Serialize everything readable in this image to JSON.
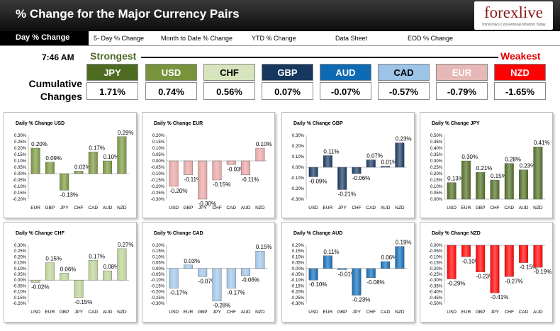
{
  "header": {
    "title": "% Change for the Major Currency Pairs",
    "logo": "forexlive",
    "logo_tagline": "Tomorrow's Conventional Wisdom Today"
  },
  "tabs": [
    {
      "label": "Day % Change",
      "active": true
    },
    {
      "label": "5- Day % Change",
      "active": false
    },
    {
      "label": "Month to Date % Change",
      "active": false
    },
    {
      "label": "YTD % Change",
      "active": false
    },
    {
      "label": "Data Sheet",
      "active": false
    },
    {
      "label": "EOD % Change",
      "active": false
    }
  ],
  "summary": {
    "time": "7:46 AM",
    "strongest": "Strongest",
    "weakest": "Weakest",
    "cumulative_label": "Cumulative Changes",
    "currencies": [
      {
        "name": "JPY",
        "value": "1.71%",
        "bg": "#4e6b22",
        "fg": "#ffffff"
      },
      {
        "name": "USD",
        "value": "0.74%",
        "bg": "#77933c",
        "fg": "#ffffff"
      },
      {
        "name": "CHF",
        "value": "0.56%",
        "bg": "#d7e4bd",
        "fg": "#000000"
      },
      {
        "name": "GBP",
        "value": "0.07%",
        "bg": "#17375e",
        "fg": "#ffffff"
      },
      {
        "name": "AUD",
        "value": "-0.07%",
        "bg": "#0f6ab4",
        "fg": "#ffffff"
      },
      {
        "name": "CAD",
        "value": "-0.57%",
        "bg": "#9dc3e6",
        "fg": "#000000"
      },
      {
        "name": "EUR",
        "value": "-0.79%",
        "bg": "#e6b9b8",
        "fg": "#ffffff"
      },
      {
        "name": "NZD",
        "value": "-1.65%",
        "bg": "#ff0000",
        "fg": "#ffffff"
      }
    ]
  },
  "chart_data": [
    {
      "type": "bar",
      "title": "Daily % Change USD",
      "categories": [
        "EUR",
        "GBP",
        "JPY",
        "CHF",
        "CAD",
        "AUD",
        "NZD"
      ],
      "values": [
        0.2,
        0.09,
        -0.13,
        0.02,
        0.17,
        0.1,
        0.29
      ],
      "labels": [
        "0.20%",
        "0.09%",
        "-0.13%",
        "0.02%",
        "0.17%",
        "0.10%",
        "0.29%"
      ],
      "ylim": [
        -0.2,
        0.3
      ],
      "yticks": [
        "0.30%",
        "0.25%",
        "0.20%",
        "0.15%",
        "0.10%",
        "0.05%",
        "0.00%",
        "-0.05%",
        "-0.10%",
        "-0.15%",
        "-0.20%"
      ],
      "color": "#77933c"
    },
    {
      "type": "bar",
      "title": "Daily % Change EUR",
      "categories": [
        "USD",
        "GBP",
        "JPY",
        "CHF",
        "CAD",
        "AUD",
        "NZD"
      ],
      "values": [
        -0.2,
        -0.11,
        -0.3,
        -0.15,
        -0.03,
        -0.11,
        0.1
      ],
      "labels": [
        "-0.20%",
        "-0.11%",
        "-0.30%",
        "-0.15%",
        "-0.03%",
        "-0.11%",
        "0.10%"
      ],
      "ylim": [
        -0.3,
        0.2
      ],
      "yticks": [
        "0.20%",
        "0.15%",
        "0.10%",
        "0.05%",
        "0.00%",
        "-0.05%",
        "-0.10%",
        "-0.15%",
        "-0.20%",
        "-0.25%",
        "-0.30%"
      ],
      "color": "#e6a3a2"
    },
    {
      "type": "bar",
      "title": "Daily % Change GBP",
      "categories": [
        "USD",
        "EUR",
        "JPY",
        "CHF",
        "CAD",
        "AUD",
        "NZD"
      ],
      "values": [
        -0.09,
        0.11,
        -0.21,
        -0.06,
        0.07,
        0.01,
        0.23
      ],
      "labels": [
        "-0.09%",
        "0.11%",
        "-0.21%",
        "-0.06%",
        "0.07%",
        "0.01%",
        "0.23%"
      ],
      "ylim": [
        -0.3,
        0.3
      ],
      "yticks": [
        "0.30%",
        "0.20%",
        "0.10%",
        "0.00%",
        "-0.10%",
        "-0.20%",
        "-0.30%"
      ],
      "color": "#17375e"
    },
    {
      "type": "bar",
      "title": "Daily % Change JPY",
      "categories": [
        "USD",
        "EUR",
        "GBP",
        "CHF",
        "CAD",
        "AUD",
        "NZD"
      ],
      "values": [
        0.13,
        0.3,
        0.21,
        0.15,
        0.28,
        0.23,
        0.41
      ],
      "labels": [
        "0.13%",
        "0.30%",
        "0.21%",
        "0.15%",
        "0.28%",
        "0.23%",
        "0.41%"
      ],
      "ylim": [
        0.0,
        0.5
      ],
      "yticks": [
        "0.50%",
        "0.45%",
        "0.40%",
        "0.35%",
        "0.30%",
        "0.25%",
        "0.20%",
        "0.15%",
        "0.10%",
        "0.05%",
        "0.00%"
      ],
      "color": "#4e6b22"
    },
    {
      "type": "bar",
      "title": "Daily % Change CHF",
      "categories": [
        "USD",
        "EUR",
        "GBP",
        "JPY",
        "CAD",
        "AUD",
        "NZD"
      ],
      "values": [
        -0.02,
        0.15,
        0.06,
        -0.15,
        0.17,
        0.08,
        0.27
      ],
      "labels": [
        "-0.02%",
        "0.15%",
        "0.06%",
        "-0.15%",
        "0.17%",
        "0.08%",
        "0.27%"
      ],
      "ylim": [
        -0.2,
        0.3
      ],
      "yticks": [
        "0.30%",
        "0.25%",
        "0.20%",
        "0.15%",
        "0.10%",
        "0.05%",
        "0.00%",
        "-0.05%",
        "-0.10%",
        "-0.15%",
        "-0.20%"
      ],
      "color": "#b9cf93"
    },
    {
      "type": "bar",
      "title": "Daily % Change CAD",
      "categories": [
        "USD",
        "EUR",
        "GBP",
        "JPY",
        "CHF",
        "AUD",
        "NZD"
      ],
      "values": [
        -0.17,
        0.03,
        -0.07,
        -0.28,
        -0.17,
        -0.06,
        0.15
      ],
      "labels": [
        "-0.17%",
        "0.03%",
        "-0.07%",
        "-0.28%",
        "-0.17%",
        "-0.06%",
        "0.15%"
      ],
      "ylim": [
        -0.3,
        0.2
      ],
      "yticks": [
        "0.20%",
        "0.15%",
        "0.10%",
        "0.05%",
        "0.00%",
        "-0.05%",
        "-0.10%",
        "-0.15%",
        "-0.20%",
        "-0.25%",
        "-0.30%"
      ],
      "color": "#9dc3e6"
    },
    {
      "type": "bar",
      "title": "Daily % Change AUD",
      "categories": [
        "USD",
        "EUR",
        "GBP",
        "JPY",
        "CHF",
        "CAD",
        "NZD"
      ],
      "values": [
        -0.1,
        0.11,
        -0.01,
        -0.23,
        -0.08,
        0.06,
        0.19
      ],
      "labels": [
        "-0.10%",
        "0.11%",
        "-0.01%",
        "-0.23%",
        "-0.08%",
        "0.06%",
        "0.19%"
      ],
      "ylim": [
        -0.3,
        0.2
      ],
      "yticks": [
        "0.20%",
        "0.15%",
        "0.10%",
        "0.05%",
        "0.00%",
        "-0.05%",
        "-0.10%",
        "-0.15%",
        "-0.20%",
        "-0.25%",
        "-0.30%"
      ],
      "color": "#0f6ab4"
    },
    {
      "type": "bar",
      "title": "Daily % Change NZD",
      "categories": [
        "USD",
        "EUR",
        "GBP",
        "JPY",
        "CHF",
        "CAD",
        "AUD"
      ],
      "values": [
        -0.29,
        -0.1,
        -0.23,
        -0.41,
        -0.27,
        -0.15,
        -0.19
      ],
      "labels": [
        "-0.29%",
        "-0.10%",
        "-0.23%",
        "-0.41%",
        "-0.27%",
        "-0.15%",
        "-0.19%"
      ],
      "ylim": [
        -0.5,
        0.0
      ],
      "yticks": [
        "0.00%",
        "-0.05%",
        "-0.10%",
        "-0.15%",
        "-0.20%",
        "-0.25%",
        "-0.30%",
        "-0.35%",
        "-0.40%",
        "-0.45%",
        "-0.50%"
      ],
      "color": "#ff0000"
    }
  ]
}
